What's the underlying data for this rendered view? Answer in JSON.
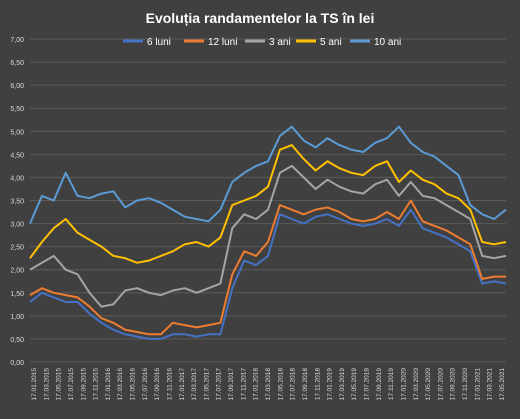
{
  "chart_data": {
    "type": "line",
    "title": "Evoluția  randamentelor  la TS în lei",
    "ylim": [
      0,
      7
    ],
    "y_ticks": [
      "0,00",
      "0,50",
      "1,00",
      "1,50",
      "2,00",
      "2,50",
      "3,00",
      "3,50",
      "4,00",
      "4,50",
      "5,00",
      "5,50",
      "6,00",
      "6,50",
      "7,00"
    ],
    "x_ticks": [
      "17.01.2015",
      "17.03.2015",
      "17.05.2015",
      "17.07.2015",
      "17.09.2015",
      "17.11.2015",
      "17.01.2016",
      "17.03.2016",
      "17.05.2016",
      "17.07.2016",
      "17.09.2016",
      "17.11.2016",
      "17.01.2017",
      "17.03.2017",
      "17.05.2017",
      "17.07.2017",
      "17.09.2017",
      "17.11.2017",
      "17.01.2018",
      "17.03.2018",
      "17.05.2018",
      "17.07.2018",
      "17.09.2018",
      "17.11.2018",
      "17.01.2019",
      "17.03.2019",
      "17.05.2019",
      "17.07.2019",
      "17.09.2019",
      "17.11.2019",
      "17.01.2020",
      "17.03.2020",
      "17.05.2020",
      "17.07.2020",
      "17.09.2020",
      "17.11.2020",
      "17.01.2021",
      "17.03.2021",
      "17.05.2021"
    ],
    "grid": "horizontal",
    "legend_position": "top",
    "colors": {
      "background": "#404040",
      "text": "#ffffff",
      "axis_text": "#d9d9d9",
      "grid": "#5a5a5a"
    },
    "series": [
      {
        "name": "6 luni",
        "color": "#4472c4",
        "values": [
          1.3,
          1.5,
          1.4,
          1.3,
          1.3,
          1.05,
          0.85,
          0.7,
          0.6,
          0.55,
          0.5,
          0.5,
          0.6,
          0.6,
          0.55,
          0.6,
          0.6,
          1.6,
          2.2,
          2.1,
          2.3,
          3.2,
          3.1,
          3.0,
          3.15,
          3.2,
          3.1,
          3.0,
          2.95,
          3.0,
          3.1,
          2.95,
          3.3,
          2.9,
          2.8,
          2.7,
          2.55,
          2.4,
          1.7,
          1.75,
          1.7
        ]
      },
      {
        "name": "12 luni",
        "color": "#ed7d31",
        "values": [
          1.45,
          1.6,
          1.5,
          1.45,
          1.4,
          1.2,
          0.95,
          0.85,
          0.7,
          0.65,
          0.6,
          0.6,
          0.85,
          0.8,
          0.75,
          0.8,
          0.85,
          1.9,
          2.4,
          2.3,
          2.6,
          3.4,
          3.3,
          3.2,
          3.3,
          3.35,
          3.25,
          3.1,
          3.05,
          3.1,
          3.25,
          3.1,
          3.5,
          3.05,
          2.95,
          2.85,
          2.7,
          2.55,
          1.8,
          1.85,
          1.85
        ]
      },
      {
        "name": "3 ani",
        "color": "#a5a5a5",
        "values": [
          2.0,
          2.15,
          2.3,
          2.0,
          1.9,
          1.5,
          1.2,
          1.25,
          1.55,
          1.6,
          1.5,
          1.45,
          1.55,
          1.6,
          1.5,
          1.6,
          1.7,
          2.9,
          3.2,
          3.1,
          3.3,
          4.1,
          4.25,
          4.0,
          3.75,
          3.95,
          3.8,
          3.7,
          3.65,
          3.85,
          3.95,
          3.6,
          3.9,
          3.6,
          3.55,
          3.4,
          3.25,
          3.1,
          2.3,
          2.25,
          2.3
        ]
      },
      {
        "name": "5 ani",
        "color": "#ffc000",
        "values": [
          2.25,
          2.6,
          2.9,
          3.1,
          2.8,
          2.65,
          2.5,
          2.3,
          2.25,
          2.15,
          2.2,
          2.3,
          2.4,
          2.55,
          2.6,
          2.5,
          2.7,
          3.4,
          3.5,
          3.6,
          3.8,
          4.6,
          4.7,
          4.4,
          4.15,
          4.35,
          4.2,
          4.1,
          4.05,
          4.25,
          4.35,
          3.9,
          4.15,
          3.95,
          3.85,
          3.65,
          3.55,
          3.3,
          2.6,
          2.55,
          2.6
        ]
      },
      {
        "name": "10 ani",
        "color": "#5b9bd5",
        "values": [
          3.0,
          3.6,
          3.5,
          4.1,
          3.6,
          3.55,
          3.65,
          3.7,
          3.35,
          3.5,
          3.55,
          3.45,
          3.3,
          3.15,
          3.1,
          3.05,
          3.3,
          3.9,
          4.1,
          4.25,
          4.35,
          4.9,
          5.1,
          4.8,
          4.65,
          4.85,
          4.7,
          4.6,
          4.55,
          4.75,
          4.85,
          5.1,
          4.75,
          4.55,
          4.45,
          4.25,
          4.05,
          3.4,
          3.2,
          3.1,
          3.3
        ]
      }
    ]
  }
}
